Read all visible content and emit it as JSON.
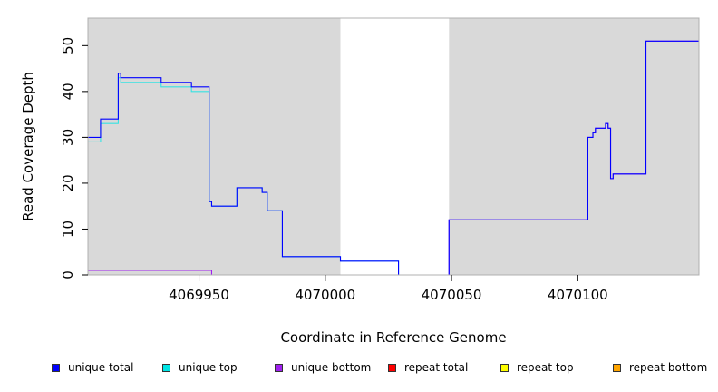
{
  "chart_data": {
    "type": "line",
    "title": "",
    "xlabel": "Coordinate in Reference Genome",
    "ylabel": "Read Coverage Depth",
    "xlim": [
      4069906,
      4070148
    ],
    "ylim": [
      0,
      56
    ],
    "x_ticks": [
      4069950,
      4070000,
      4070050,
      4070100
    ],
    "y_ticks": [
      0,
      10,
      20,
      30,
      40,
      50
    ],
    "shaded_regions": [
      [
        4069906,
        4070006
      ],
      [
        4070049,
        4070148
      ]
    ],
    "background_color": "#d9d9d9",
    "grid": false,
    "legend_position": "bottom",
    "series": [
      {
        "name": "unique total",
        "color": "#0000ff",
        "points": [
          [
            4069906,
            30
          ],
          [
            4069911,
            30
          ],
          [
            4069911,
            34
          ],
          [
            4069918,
            34
          ],
          [
            4069918,
            44
          ],
          [
            4069919,
            44
          ],
          [
            4069919,
            43
          ],
          [
            4069935,
            43
          ],
          [
            4069935,
            42
          ],
          [
            4069947,
            42
          ],
          [
            4069947,
            41
          ],
          [
            4069954,
            41
          ],
          [
            4069954,
            16
          ],
          [
            4069955,
            16
          ],
          [
            4069955,
            15
          ],
          [
            4069965,
            15
          ],
          [
            4069965,
            19
          ],
          [
            4069975,
            19
          ],
          [
            4069975,
            18
          ],
          [
            4069977,
            18
          ],
          [
            4069977,
            14
          ],
          [
            4069983,
            14
          ],
          [
            4069983,
            4
          ],
          [
            4070006,
            4
          ],
          [
            4070006,
            3
          ],
          [
            4070029,
            3
          ],
          [
            4070029,
            0
          ],
          [
            4070049,
            0
          ],
          [
            4070049,
            12
          ],
          [
            4070104,
            12
          ],
          [
            4070104,
            30
          ],
          [
            4070106,
            30
          ],
          [
            4070106,
            31
          ],
          [
            4070107,
            31
          ],
          [
            4070107,
            32
          ],
          [
            4070111,
            32
          ],
          [
            4070111,
            33
          ],
          [
            4070112,
            33
          ],
          [
            4070112,
            32
          ],
          [
            4070113,
            32
          ],
          [
            4070113,
            21
          ],
          [
            4070114,
            21
          ],
          [
            4070114,
            22
          ],
          [
            4070127,
            22
          ],
          [
            4070127,
            51
          ],
          [
            4070148,
            51
          ]
        ]
      },
      {
        "name": "unique top",
        "color": "#00e5e5",
        "points": [
          [
            4069906,
            29
          ],
          [
            4069911,
            29
          ],
          [
            4069911,
            33
          ],
          [
            4069918,
            33
          ],
          [
            4069918,
            43
          ],
          [
            4069919,
            43
          ],
          [
            4069919,
            42
          ],
          [
            4069935,
            42
          ],
          [
            4069935,
            41
          ],
          [
            4069947,
            41
          ],
          [
            4069947,
            40
          ],
          [
            4069954,
            40
          ],
          [
            4069954,
            16
          ],
          [
            4069955,
            16
          ],
          [
            4069955,
            15
          ],
          [
            4069965,
            15
          ],
          [
            4069965,
            19
          ],
          [
            4069975,
            19
          ],
          [
            4069975,
            18
          ],
          [
            4069977,
            18
          ],
          [
            4069977,
            14
          ],
          [
            4069983,
            14
          ],
          [
            4069983,
            4
          ],
          [
            4070006,
            4
          ],
          [
            4070006,
            3
          ],
          [
            4070029,
            3
          ],
          [
            4070029,
            0
          ],
          [
            4070148,
            0
          ]
        ]
      },
      {
        "name": "unique bottom",
        "color": "#a020f0",
        "points": [
          [
            4069906,
            1
          ],
          [
            4069955,
            1
          ],
          [
            4069955,
            0
          ],
          [
            4070049,
            0
          ],
          [
            4070049,
            12
          ],
          [
            4070104,
            12
          ],
          [
            4070104,
            30
          ],
          [
            4070106,
            30
          ],
          [
            4070106,
            31
          ],
          [
            4070107,
            31
          ],
          [
            4070107,
            32
          ],
          [
            4070111,
            32
          ],
          [
            4070111,
            33
          ],
          [
            4070112,
            33
          ],
          [
            4070112,
            32
          ],
          [
            4070113,
            32
          ],
          [
            4070113,
            21
          ],
          [
            4070114,
            21
          ],
          [
            4070114,
            22
          ],
          [
            4070127,
            22
          ],
          [
            4070127,
            51
          ],
          [
            4070148,
            51
          ]
        ]
      },
      {
        "name": "repeat total",
        "color": "#ff0000",
        "points": [
          [
            4069906,
            0
          ],
          [
            4070148,
            0
          ]
        ]
      },
      {
        "name": "repeat top",
        "color": "#ffff00",
        "points": [
          [
            4069906,
            0
          ],
          [
            4070148,
            0
          ]
        ]
      },
      {
        "name": "repeat bottom",
        "color": "#ffa500",
        "points": [
          [
            4069906,
            0
          ],
          [
            4070148,
            0
          ]
        ]
      }
    ]
  }
}
